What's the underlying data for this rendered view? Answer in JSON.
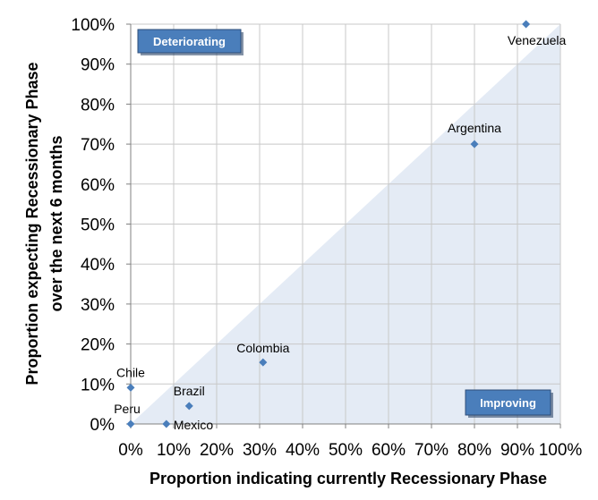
{
  "chart_data": {
    "type": "scatter",
    "title": "",
    "xlabel": "Proportion indicating currently Recessionary Phase",
    "ylabel_lines": [
      "Proportion expecting Recessionary Phase",
      "over the next 6 months"
    ],
    "xlim": [
      0,
      100
    ],
    "ylim": [
      0,
      100
    ],
    "x_ticks": [
      0,
      10,
      20,
      30,
      40,
      50,
      60,
      70,
      80,
      90,
      100
    ],
    "y_ticks": [
      0,
      10,
      20,
      30,
      40,
      50,
      60,
      70,
      80,
      90,
      100
    ],
    "x_tick_labels": [
      "0%",
      "10%",
      "20%",
      "30%",
      "40%",
      "50%",
      "60%",
      "70%",
      "80%",
      "90%",
      "100%"
    ],
    "y_tick_labels": [
      "0%",
      "10%",
      "20%",
      "30%",
      "40%",
      "50%",
      "60%",
      "70%",
      "80%",
      "90%",
      "100%"
    ],
    "grid": true,
    "points": [
      {
        "name": "Venezuela",
        "x": 92,
        "y": 100
      },
      {
        "name": "Argentina",
        "x": 80,
        "y": 70
      },
      {
        "name": "Colombia",
        "x": 30.8,
        "y": 15.4
      },
      {
        "name": "Chile",
        "x": 0,
        "y": 9.1
      },
      {
        "name": "Brazil",
        "x": 13.6,
        "y": 4.5
      },
      {
        "name": "Peru",
        "x": 0,
        "y": 0
      },
      {
        "name": "Mexico",
        "x": 8.3,
        "y": 0
      }
    ],
    "regions": {
      "upper_label": "Deteriorating",
      "lower_label": "Improving"
    },
    "colors": {
      "marker": "#4a7ebb",
      "improving_fill": "#e4ebf5",
      "badge_fill": "#4a7ebb",
      "badge_border": "#2f4f7a",
      "grid": "#c8c8c8"
    }
  }
}
